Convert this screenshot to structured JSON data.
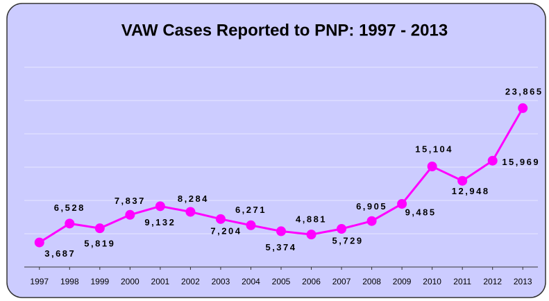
{
  "chart_data": {
    "type": "line",
    "title": "VAW Cases Reported to PNP: 1997 - 2013",
    "x": [
      1997,
      1998,
      1999,
      2000,
      2001,
      2002,
      2003,
      2004,
      2005,
      2006,
      2007,
      2008,
      2009,
      2010,
      2011,
      2012,
      2013
    ],
    "xlim": [
      1996.5,
      2013.5
    ],
    "xticks": [
      1997,
      1998,
      1999,
      2000,
      2001,
      2002,
      2003,
      2004,
      2005,
      2006,
      2007,
      2008,
      2009,
      2010,
      2011,
      2012,
      2013
    ],
    "series": [
      {
        "color": "#ff00ff",
        "values": [
          3687,
          6528,
          5819,
          7837,
          9132,
          8284,
          7204,
          6271,
          5374,
          4881,
          5729,
          6905,
          9485,
          15104,
          12948,
          15969,
          23865
        ],
        "value_labels": [
          "3,687",
          "6,528",
          "5,819",
          "7,837",
          "9,132",
          "8,284",
          "7,204",
          "6,271",
          "5,374",
          "4,881",
          "5,729",
          "6,905",
          "9,485",
          "15,104",
          "12,948",
          "15,969",
          "23,865"
        ]
      }
    ],
    "ylim": [
      0,
      30000
    ],
    "yticks": [
      0,
      5000,
      10000,
      15000,
      20000,
      25000,
      30000
    ],
    "grid": true
  }
}
